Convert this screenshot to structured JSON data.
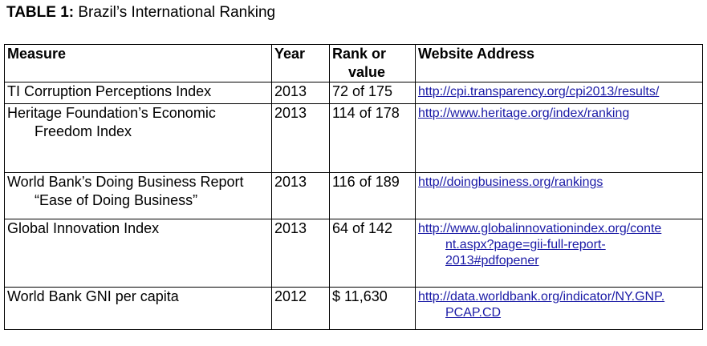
{
  "title": {
    "bold": "TABLE 1:",
    "rest": "Brazil’s International Ranking"
  },
  "headers": {
    "measure": "Measure",
    "year": "Year",
    "rank_l1": "Rank or",
    "rank_l2": "value",
    "website": "Website Address"
  },
  "rows": [
    {
      "measure_l1": "TI Corruption Perceptions Index",
      "measure_l2": "",
      "year": "2013",
      "rank": "72 of 175",
      "link_l1": "http://cpi.transparency.org/cpi2013/results/",
      "link_l2": "",
      "link_l3": ""
    },
    {
      "measure_l1": "Heritage Foundation’s Economic",
      "measure_l2": "Freedom Index",
      "year": "2013",
      "rank": "114 of 178",
      "link_l1": "http://www.heritage.org/index/ranking",
      "link_l2": "",
      "link_l3": ""
    },
    {
      "measure_l1": "World Bank’s Doing Business Report",
      "measure_l2": "“Ease of Doing Business”",
      "year": "2013",
      "rank": "116 of 189",
      "link_l1": "http//doingbusiness.org/rankings",
      "link_l2": "",
      "link_l3": ""
    },
    {
      "measure_l1": "Global Innovation Index",
      "measure_l2": "",
      "year": "2013",
      "rank": "64 of 142",
      "link_l1": "http://www.globalinnovationindex.org/conte",
      "link_l2": "nt.aspx?page=gii-full-report-",
      "link_l3": "2013#pdfopener"
    },
    {
      "measure_l1": "World Bank GNI per capita",
      "measure_l2": "",
      "year": "2012",
      "rank": "$ 11,630",
      "link_l1": "http://data.worldbank.org/indicator/NY.GNP.",
      "link_l2": "PCAP.CD",
      "link_l3": ""
    }
  ]
}
